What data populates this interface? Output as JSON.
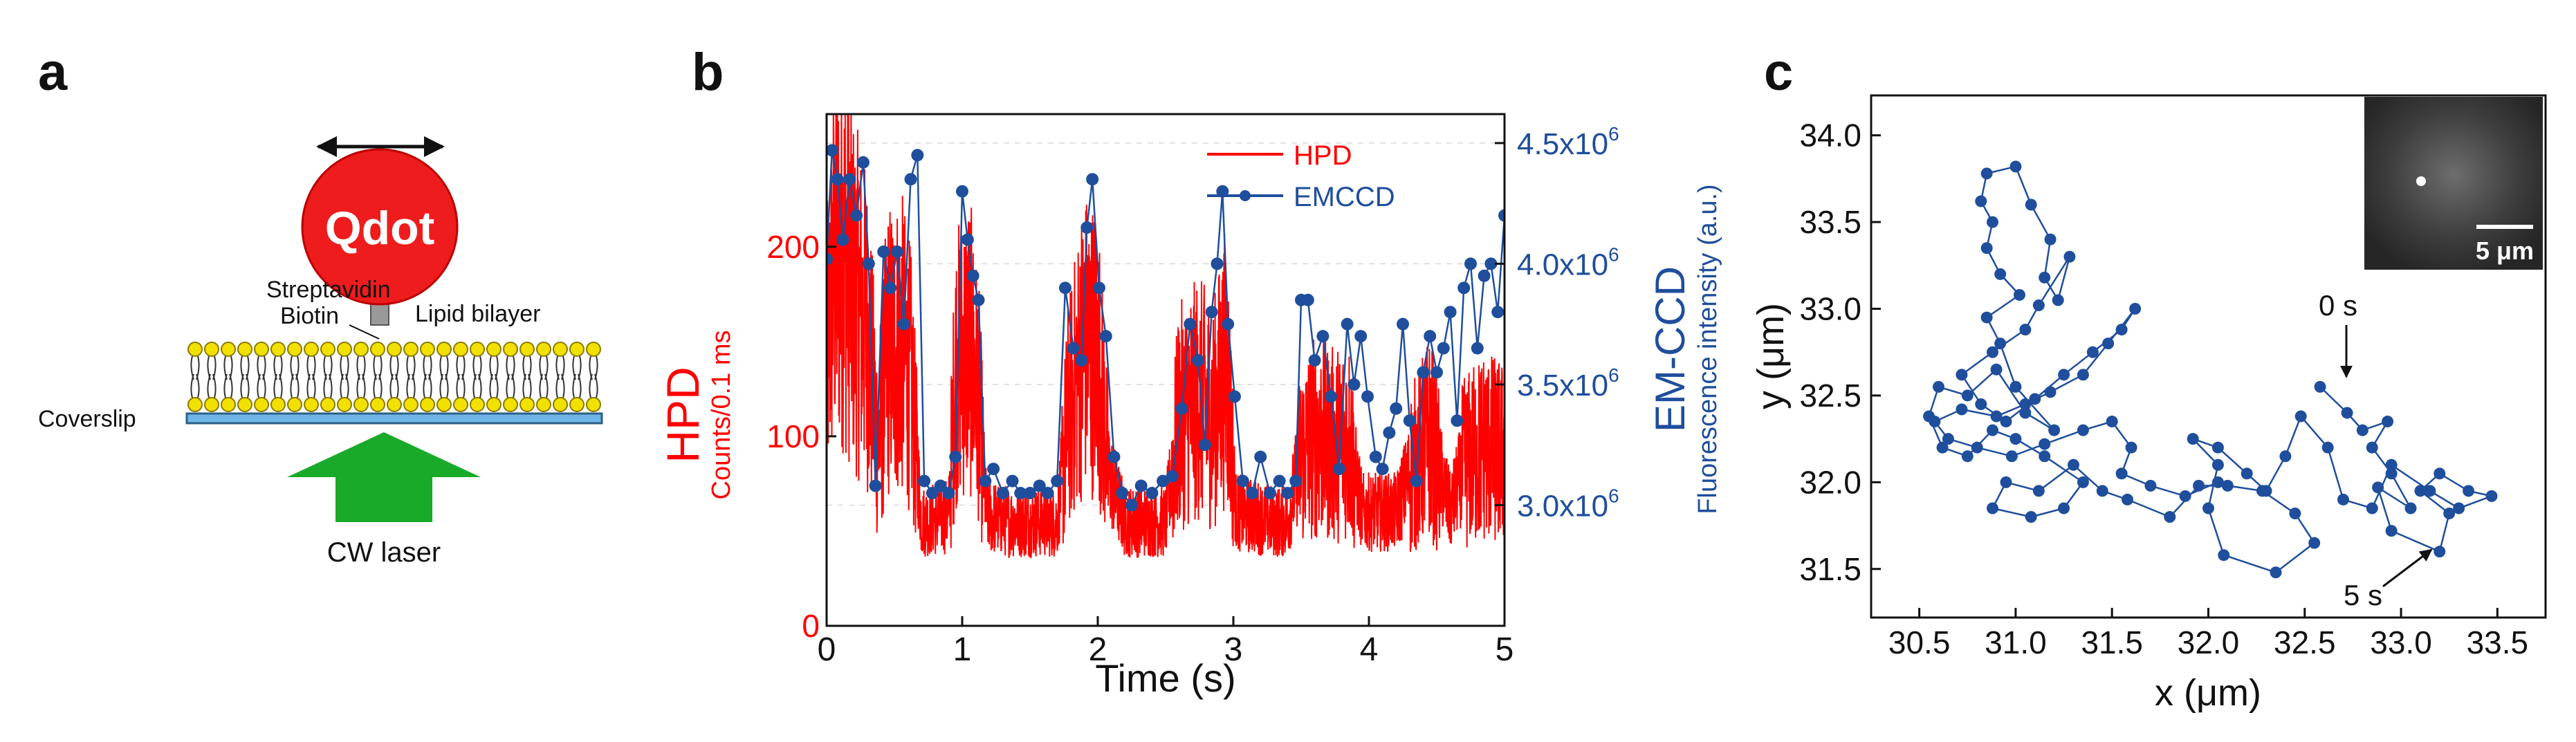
{
  "panels": {
    "a": {
      "label": "a"
    },
    "b": {
      "label": "b"
    },
    "c": {
      "label": "c"
    }
  },
  "schematic": {
    "qdot_label": "Qdot",
    "streptavidin_label": "Streptavidin",
    "biotin_label": "Biotin",
    "lipid_bilayer_label": "Lipid bilayer",
    "coverslip_label": "Coverslip",
    "laser_label": "CW laser",
    "colors": {
      "qdot": "#ee1c1c",
      "lipid_head": "#f2e000",
      "arrow": "#1aaa2a",
      "coverslip": "#6fb6e8"
    }
  },
  "chart_data": [
    {
      "type": "line",
      "panel": "b",
      "xlabel": "Time (s)",
      "xlim": [
        0,
        5
      ],
      "x_ticks": [
        "0",
        "1",
        "2",
        "3",
        "4",
        "5"
      ],
      "ylabel_left": "HPD",
      "ylabel_left_sub": "Counts/0.1 ms",
      "ylim_left": [
        0,
        270
      ],
      "y_ticks_left": [
        "0",
        "100",
        "200"
      ],
      "ylabel_right": "EM-CCD",
      "ylabel_right_sub": "Fluorescence intensity (a.u.)",
      "ylim_right": [
        2.5,
        4.62
      ],
      "y_ticks_right": [
        {
          "value": 3.0,
          "mant": "3.0x10",
          "exp": "6"
        },
        {
          "value": 3.5,
          "mant": "3.5x10",
          "exp": "6"
        },
        {
          "value": 4.0,
          "mant": "4.0x10",
          "exp": "6"
        },
        {
          "value": 4.5,
          "mant": "4.5x10",
          "exp": "6"
        }
      ],
      "series": [
        {
          "name": "HPD",
          "color": "#ff0000",
          "note": "high-rate trace generated from envelope (time s, counts)",
          "envelope": [
            [
              0.0,
              140
            ],
            [
              0.05,
              185
            ],
            [
              0.12,
              200
            ],
            [
              0.2,
              175
            ],
            [
              0.3,
              155
            ],
            [
              0.38,
              95
            ],
            [
              0.45,
              145
            ],
            [
              0.55,
              150
            ],
            [
              0.62,
              130
            ],
            [
              0.7,
              55
            ],
            [
              0.9,
              58
            ],
            [
              0.95,
              135
            ],
            [
              1.05,
              150
            ],
            [
              1.12,
              120
            ],
            [
              1.18,
              58
            ],
            [
              1.35,
              55
            ],
            [
              1.5,
              55
            ],
            [
              1.7,
              55
            ],
            [
              1.78,
              110
            ],
            [
              1.9,
              150
            ],
            [
              2.0,
              145
            ],
            [
              2.08,
              80
            ],
            [
              2.2,
              55
            ],
            [
              2.5,
              55
            ],
            [
              2.6,
              110
            ],
            [
              2.75,
              120
            ],
            [
              2.85,
              110
            ],
            [
              2.95,
              140
            ],
            [
              3.02,
              60
            ],
            [
              3.3,
              55
            ],
            [
              3.4,
              55
            ],
            [
              3.5,
              90
            ],
            [
              3.6,
              100
            ],
            [
              3.75,
              95
            ],
            [
              3.85,
              100
            ],
            [
              3.95,
              60
            ],
            [
              4.2,
              60
            ],
            [
              4.3,
              80
            ],
            [
              4.45,
              100
            ],
            [
              4.6,
              60
            ],
            [
              4.7,
              85
            ],
            [
              4.85,
              95
            ],
            [
              5.0,
              90
            ]
          ]
        },
        {
          "name": "EMCCD",
          "color": "#1f4e9c",
          "points": [
            [
              0.0,
              4.02
            ],
            [
              0.04,
              4.47
            ],
            [
              0.08,
              4.35
            ],
            [
              0.12,
              4.1
            ],
            [
              0.17,
              4.35
            ],
            [
              0.22,
              4.2
            ],
            [
              0.27,
              4.42
            ],
            [
              0.31,
              4.0
            ],
            [
              0.36,
              3.08
            ],
            [
              0.42,
              4.05
            ],
            [
              0.47,
              3.9
            ],
            [
              0.52,
              4.05
            ],
            [
              0.57,
              3.75
            ],
            [
              0.62,
              4.35
            ],
            [
              0.67,
              4.45
            ],
            [
              0.72,
              3.1
            ],
            [
              0.78,
              3.05
            ],
            [
              0.84,
              3.08
            ],
            [
              0.9,
              3.05
            ],
            [
              0.95,
              3.2
            ],
            [
              1.0,
              4.3
            ],
            [
              1.04,
              4.1
            ],
            [
              1.08,
              3.95
            ],
            [
              1.12,
              3.85
            ],
            [
              1.17,
              3.1
            ],
            [
              1.23,
              3.15
            ],
            [
              1.3,
              3.05
            ],
            [
              1.37,
              3.1
            ],
            [
              1.43,
              3.05
            ],
            [
              1.5,
              3.05
            ],
            [
              1.57,
              3.08
            ],
            [
              1.63,
              3.05
            ],
            [
              1.7,
              3.1
            ],
            [
              1.76,
              3.9
            ],
            [
              1.82,
              3.65
            ],
            [
              1.88,
              3.6
            ],
            [
              1.92,
              4.15
            ],
            [
              1.96,
              4.35
            ],
            [
              2.01,
              3.9
            ],
            [
              2.06,
              3.7
            ],
            [
              2.12,
              3.2
            ],
            [
              2.18,
              3.05
            ],
            [
              2.25,
              3.0
            ],
            [
              2.32,
              3.08
            ],
            [
              2.4,
              3.05
            ],
            [
              2.48,
              3.1
            ],
            [
              2.55,
              3.12
            ],
            [
              2.62,
              3.4
            ],
            [
              2.68,
              3.75
            ],
            [
              2.74,
              3.6
            ],
            [
              2.79,
              3.25
            ],
            [
              2.84,
              3.8
            ],
            [
              2.88,
              4.0
            ],
            [
              2.92,
              4.3
            ],
            [
              2.96,
              3.75
            ],
            [
              3.01,
              3.45
            ],
            [
              3.07,
              3.1
            ],
            [
              3.14,
              3.05
            ],
            [
              3.2,
              3.2
            ],
            [
              3.27,
              3.05
            ],
            [
              3.34,
              3.1
            ],
            [
              3.4,
              3.05
            ],
            [
              3.46,
              3.1
            ],
            [
              3.5,
              3.85
            ],
            [
              3.55,
              3.85
            ],
            [
              3.6,
              3.6
            ],
            [
              3.66,
              3.7
            ],
            [
              3.72,
              3.45
            ],
            [
              3.78,
              3.15
            ],
            [
              3.84,
              3.75
            ],
            [
              3.89,
              3.5
            ],
            [
              3.94,
              3.7
            ],
            [
              3.99,
              3.45
            ],
            [
              4.05,
              3.2
            ],
            [
              4.1,
              3.15
            ],
            [
              4.15,
              3.3
            ],
            [
              4.2,
              3.4
            ],
            [
              4.25,
              3.75
            ],
            [
              4.3,
              3.35
            ],
            [
              4.35,
              3.1
            ],
            [
              4.4,
              3.55
            ],
            [
              4.45,
              3.7
            ],
            [
              4.5,
              3.55
            ],
            [
              4.55,
              3.65
            ],
            [
              4.6,
              3.8
            ],
            [
              4.65,
              3.35
            ],
            [
              4.7,
              3.9
            ],
            [
              4.75,
              4.0
            ],
            [
              4.8,
              3.65
            ],
            [
              4.85,
              3.95
            ],
            [
              4.9,
              4.0
            ],
            [
              4.95,
              3.8
            ],
            [
              5.0,
              4.2
            ]
          ]
        }
      ]
    },
    {
      "type": "scatter",
      "panel": "c",
      "connected": true,
      "xlabel": "x (μm)",
      "ylabel": "y (μm)",
      "xlim": [
        30.25,
        33.75
      ],
      "ylim": [
        31.22,
        34.23
      ],
      "x_ticks": [
        "30.5",
        "31.0",
        "31.5",
        "32.0",
        "32.5",
        "33.0",
        "33.5"
      ],
      "y_ticks": [
        "31.5",
        "32.0",
        "32.5",
        "33.0",
        "33.5",
        "34.0"
      ],
      "series": [
        {
          "name": "trajectory",
          "color": "#1f4e9c",
          "points": [
            [
              32.58,
              32.55
            ],
            [
              32.72,
              32.4
            ],
            [
              32.8,
              32.3
            ],
            [
              32.93,
              32.35
            ],
            [
              32.85,
              32.2
            ],
            [
              32.95,
              32.05
            ],
            [
              33.05,
              31.85
            ],
            [
              32.88,
              31.97
            ],
            [
              32.95,
              31.72
            ],
            [
              33.2,
              31.6
            ],
            [
              33.25,
              31.82
            ],
            [
              33.1,
              31.95
            ],
            [
              33.2,
              32.05
            ],
            [
              33.35,
              31.95
            ],
            [
              33.47,
              31.92
            ],
            [
              33.3,
              31.85
            ],
            [
              33.15,
              31.95
            ],
            [
              32.95,
              32.1
            ],
            [
              32.85,
              31.85
            ],
            [
              32.7,
              31.9
            ],
            [
              32.62,
              32.2
            ],
            [
              32.48,
              32.38
            ],
            [
              32.4,
              32.15
            ],
            [
              32.3,
              31.95
            ],
            [
              32.2,
              32.05
            ],
            [
              32.05,
              32.2
            ],
            [
              31.92,
              32.25
            ],
            [
              32.05,
              32.1
            ],
            [
              32.0,
              31.85
            ],
            [
              32.08,
              31.58
            ],
            [
              32.35,
              31.48
            ],
            [
              32.55,
              31.65
            ],
            [
              32.45,
              31.82
            ],
            [
              32.28,
              31.95
            ],
            [
              32.1,
              31.98
            ],
            [
              31.95,
              31.98
            ],
            [
              31.8,
              31.8
            ],
            [
              31.58,
              31.9
            ],
            [
              31.45,
              31.95
            ],
            [
              31.3,
              32.1
            ],
            [
              31.12,
              31.95
            ],
            [
              30.95,
              32.0
            ],
            [
              30.88,
              31.85
            ],
            [
              31.08,
              31.8
            ],
            [
              31.25,
              31.85
            ],
            [
              31.35,
              32.0
            ],
            [
              31.15,
              32.15
            ],
            [
              31.0,
              32.25
            ],
            [
              30.88,
              32.3
            ],
            [
              30.75,
              32.15
            ],
            [
              30.62,
              32.2
            ],
            [
              30.55,
              32.38
            ],
            [
              30.6,
              32.55
            ],
            [
              30.75,
              32.5
            ],
            [
              30.9,
              32.65
            ],
            [
              31.05,
              32.4
            ],
            [
              31.2,
              32.3
            ],
            [
              31.0,
              32.55
            ],
            [
              30.92,
              32.8
            ],
            [
              30.85,
              32.95
            ],
            [
              31.02,
              33.08
            ],
            [
              30.92,
              33.2
            ],
            [
              30.85,
              33.35
            ],
            [
              30.88,
              33.5
            ],
            [
              30.82,
              33.62
            ],
            [
              30.85,
              33.78
            ],
            [
              31.0,
              33.82
            ],
            [
              31.08,
              33.6
            ],
            [
              31.18,
              33.4
            ],
            [
              31.15,
              33.18
            ],
            [
              31.22,
              33.05
            ],
            [
              31.28,
              33.3
            ],
            [
              31.12,
              33.02
            ],
            [
              31.05,
              32.88
            ],
            [
              30.88,
              32.75
            ],
            [
              30.72,
              32.62
            ],
            [
              30.82,
              32.45
            ],
            [
              30.95,
              32.35
            ],
            [
              31.1,
              32.48
            ],
            [
              31.25,
              32.62
            ],
            [
              31.4,
              32.75
            ],
            [
              31.55,
              32.88
            ],
            [
              31.62,
              33.0
            ],
            [
              31.48,
              32.8
            ],
            [
              31.35,
              32.62
            ],
            [
              31.18,
              32.52
            ],
            [
              31.05,
              32.45
            ],
            [
              30.9,
              32.38
            ],
            [
              30.72,
              32.42
            ],
            [
              30.58,
              32.35
            ],
            [
              30.65,
              32.25
            ],
            [
              30.8,
              32.2
            ],
            [
              30.98,
              32.15
            ],
            [
              31.15,
              32.22
            ],
            [
              31.35,
              32.3
            ],
            [
              31.5,
              32.35
            ],
            [
              31.6,
              32.2
            ],
            [
              31.55,
              32.05
            ],
            [
              31.7,
              31.98
            ],
            [
              31.88,
              31.92
            ],
            [
              32.05,
              32.0
            ]
          ]
        }
      ],
      "annotations": {
        "start": "0 s",
        "end": "5 s"
      },
      "inset_scale": "5 μm"
    }
  ]
}
